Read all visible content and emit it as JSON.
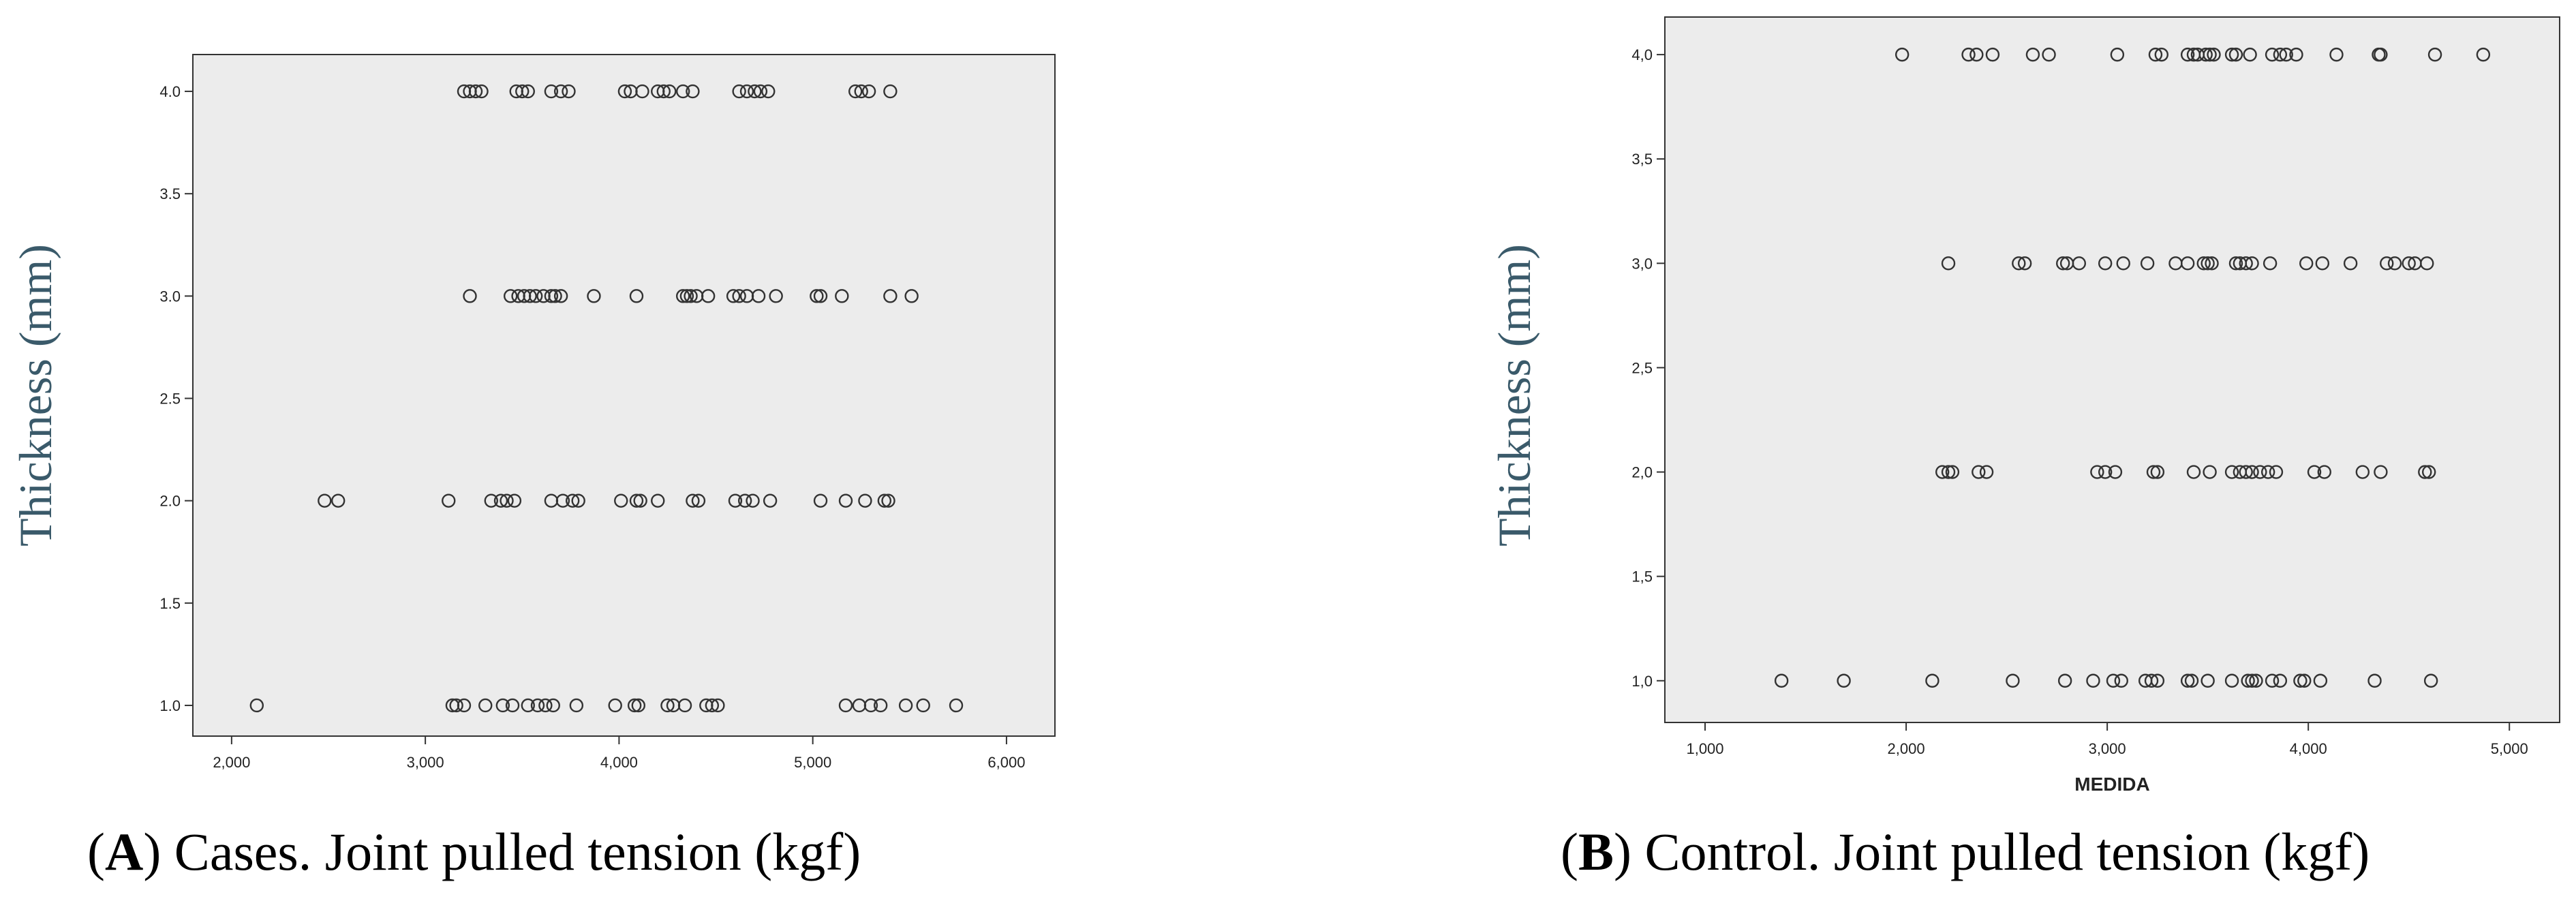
{
  "chart_data": [
    {
      "type": "scatter",
      "caption_letter": "A",
      "caption_text": ") Cases. Joint pulled tension (kgf)",
      "ylabel": "Thickness (mm)",
      "xlabel": "",
      "xlim": [
        1800,
        6250
      ],
      "ylim": [
        0.85,
        4.18
      ],
      "xticks": [
        2000,
        3000,
        4000,
        5000,
        6000
      ],
      "xtick_labels": [
        "2,000",
        "3,000",
        "4,000",
        "5,000",
        "6,000"
      ],
      "yticks": [
        1.0,
        1.5,
        2.0,
        2.5,
        3.0,
        3.5,
        4.0
      ],
      "ytick_labels": [
        "1.0",
        "1.5",
        "2.0",
        "2.5",
        "3.0",
        "3.5",
        "4.0"
      ],
      "series": [
        {
          "y": 4.0,
          "x": [
            3200,
            3230,
            3260,
            3290,
            3470,
            3500,
            3530,
            3650,
            3700,
            3740,
            4030,
            4060,
            4120,
            4200,
            4230,
            4260,
            4330,
            4380,
            4620,
            4660,
            4700,
            4730,
            4770,
            5220,
            5250,
            5290,
            5400
          ]
        },
        {
          "y": 3.0,
          "x": [
            3230,
            3440,
            3480,
            3510,
            3540,
            3570,
            3610,
            3650,
            3670,
            3700,
            3870,
            4090,
            4330,
            4350,
            4370,
            4400,
            4460,
            4590,
            4620,
            4660,
            4720,
            4810,
            5020,
            5040,
            5150,
            5400,
            5510
          ]
        },
        {
          "y": 2.0,
          "x": [
            2480,
            2550,
            3120,
            3340,
            3390,
            3420,
            3460,
            3650,
            3710,
            3760,
            3790,
            4010,
            4090,
            4110,
            4200,
            4380,
            4410,
            4600,
            4650,
            4690,
            4780,
            5040,
            5170,
            5270,
            5370,
            5390
          ]
        },
        {
          "y": 1.0,
          "x": [
            2130,
            3140,
            3160,
            3200,
            3310,
            3400,
            3450,
            3530,
            3580,
            3620,
            3660,
            3780,
            3980,
            4080,
            4100,
            4250,
            4280,
            4340,
            4450,
            4480,
            4510,
            5170,
            5240,
            5300,
            5350,
            5480,
            5570,
            5740
          ]
        }
      ]
    },
    {
      "type": "scatter",
      "caption_letter": "B",
      "caption_text": ") Control. Joint pulled tension (kgf)",
      "ylabel": "Thickness (mm)",
      "xlabel": "MEDIDA",
      "xlim": [
        800,
        5250
      ],
      "ylim": [
        0.8,
        4.18
      ],
      "xticks": [
        1000,
        2000,
        3000,
        4000,
        5000
      ],
      "xtick_labels": [
        "1,000",
        "2,000",
        "3,000",
        "4,000",
        "5,000"
      ],
      "yticks": [
        1.0,
        1.5,
        2.0,
        2.5,
        3.0,
        3.5,
        4.0
      ],
      "ytick_labels": [
        "1,0",
        "1,5",
        "2,0",
        "2,5",
        "3,0",
        "3,5",
        "4,0"
      ],
      "series": [
        {
          "y": 4.0,
          "x": [
            1980,
            2310,
            2350,
            2430,
            2630,
            2710,
            3050,
            3240,
            3270,
            3400,
            3430,
            3450,
            3490,
            3510,
            3530,
            3620,
            3640,
            3710,
            3820,
            3860,
            3890,
            3940,
            4140,
            4350,
            4360,
            4630,
            4870
          ]
        },
        {
          "y": 3.0,
          "x": [
            2210,
            2560,
            2590,
            2780,
            2800,
            2860,
            2990,
            3080,
            3200,
            3340,
            3400,
            3480,
            3500,
            3520,
            3640,
            3660,
            3690,
            3720,
            3810,
            3990,
            4070,
            4210,
            4390,
            4430,
            4500,
            4530,
            4590
          ]
        },
        {
          "y": 2.0,
          "x": [
            2180,
            2210,
            2230,
            2360,
            2400,
            2950,
            2990,
            3040,
            3230,
            3250,
            3430,
            3510,
            3620,
            3660,
            3690,
            3720,
            3760,
            3800,
            3840,
            4030,
            4080,
            4270,
            4360,
            4580,
            4600
          ]
        },
        {
          "y": 1.0,
          "x": [
            1380,
            1690,
            2130,
            2530,
            2790,
            2930,
            3030,
            3070,
            3190,
            3220,
            3250,
            3400,
            3420,
            3500,
            3620,
            3700,
            3720,
            3740,
            3820,
            3860,
            3960,
            3980,
            4060,
            4330,
            4610
          ]
        }
      ]
    }
  ]
}
